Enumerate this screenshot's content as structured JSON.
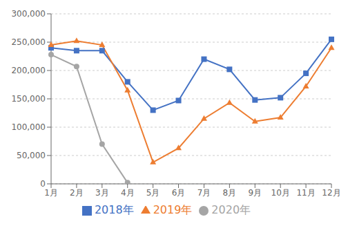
{
  "chart_data": {
    "type": "line",
    "categories": [
      "1月",
      "2月",
      "3月",
      "4月",
      "5月",
      "6月",
      "7月",
      "8月",
      "9月",
      "10月",
      "11月",
      "12月"
    ],
    "series": [
      {
        "name": "2018年",
        "color": "#4472C4",
        "marker": "square",
        "values": [
          240000,
          235000,
          235000,
          180000,
          130000,
          147000,
          220000,
          202000,
          148000,
          152000,
          195000,
          255000
        ]
      },
      {
        "name": "2019年",
        "color": "#ED7D31",
        "marker": "triangle",
        "values": [
          245000,
          252000,
          245000,
          165000,
          38000,
          63000,
          115000,
          143000,
          110000,
          117000,
          172000,
          240000
        ]
      },
      {
        "name": "2020年",
        "color": "#A5A5A5",
        "marker": "circle",
        "values": [
          228000,
          207000,
          70000,
          2000,
          null,
          null,
          null,
          null,
          null,
          null,
          null,
          null
        ]
      }
    ],
    "ylim": [
      0,
      300000
    ],
    "yticks": [
      0,
      {
        "value": 50000,
        "label": "50,000"
      },
      {
        "value": 100000,
        "label": "100,000"
      },
      {
        "value": 150000,
        "label": "150,000"
      },
      {
        "value": 200000,
        "label": "200,000"
      },
      {
        "value": 250000,
        "label": "250,000"
      },
      {
        "value": 300000,
        "label": "300,000"
      }
    ],
    "grid": true,
    "legend": "bottom"
  }
}
